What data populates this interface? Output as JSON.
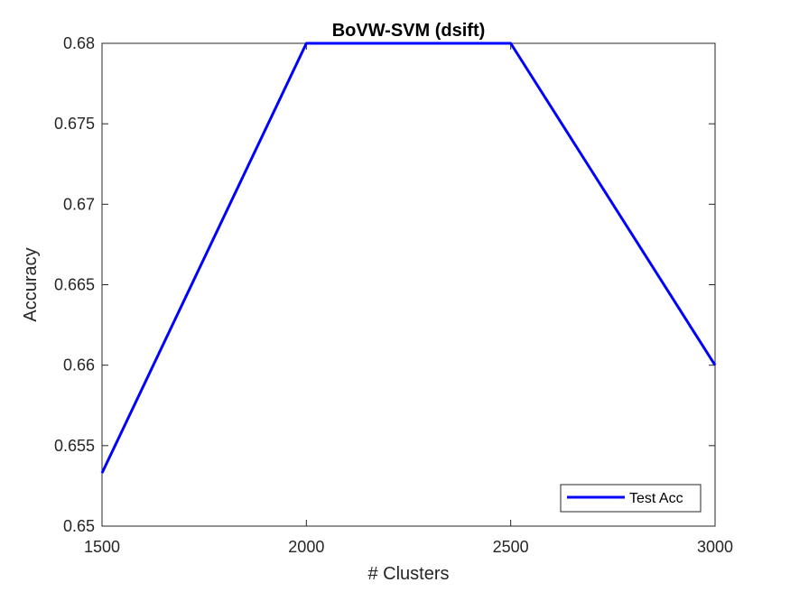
{
  "chart_data": {
    "type": "line",
    "title": "BoVW-SVM (dsift)",
    "xlabel": "# Clusters",
    "ylabel": "Accuracy",
    "xlim": [
      1500,
      3000
    ],
    "ylim": [
      0.65,
      0.68
    ],
    "xticks": [
      1500,
      2000,
      2500,
      3000
    ],
    "xtick_labels": [
      "1500",
      "2000",
      "2500",
      "3000"
    ],
    "yticks": [
      0.65,
      0.655,
      0.66,
      0.665,
      0.67,
      0.675,
      0.68
    ],
    "ytick_labels": [
      "0.65",
      "0.655",
      "0.66",
      "0.665",
      "0.67",
      "0.675",
      "0.68"
    ],
    "grid": false,
    "legend_position": "bottom-right",
    "series": [
      {
        "name": "Test Acc",
        "color": "#0000ff",
        "x": [
          1500,
          2000,
          2500,
          3000
        ],
        "y": [
          0.6533,
          0.68,
          0.68,
          0.66
        ]
      }
    ]
  }
}
